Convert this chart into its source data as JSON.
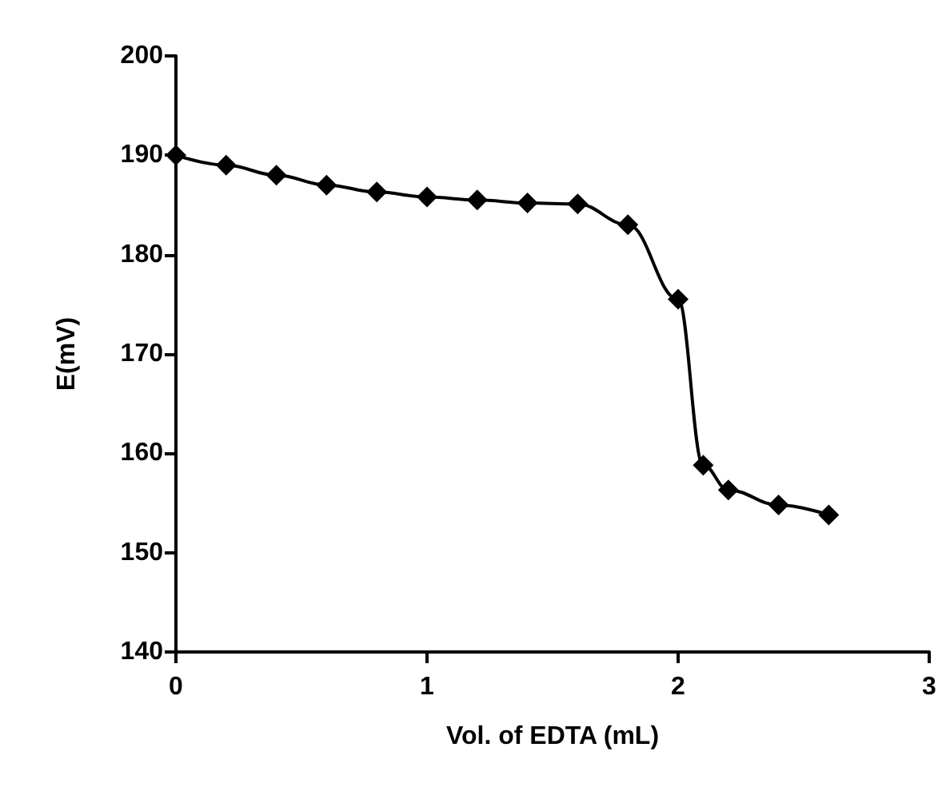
{
  "chart_data": {
    "type": "line",
    "xlabel": "Vol. of EDTA (mL)",
    "ylabel": "E(mV)",
    "x": [
      0,
      0.2,
      0.4,
      0.6,
      0.8,
      1.0,
      1.2,
      1.4,
      1.6,
      1.8,
      2.0,
      2.1,
      2.2,
      2.4,
      2.6
    ],
    "series": [
      {
        "color": "#000000",
        "values": [
          190,
          189,
          188,
          187,
          186.3,
          185.8,
          185.5,
          185.2,
          185.1,
          183,
          175.5,
          158.8,
          156.3,
          154.8,
          153.8
        ]
      }
    ],
    "xlim": [
      0,
      3
    ],
    "xticks": [
      0,
      1,
      2,
      3
    ],
    "ylim": [
      140,
      200
    ],
    "yticks": [
      140,
      150,
      160,
      170,
      180,
      190,
      200
    ],
    "grid": false,
    "marker": "diamond",
    "line_style": "solid"
  }
}
